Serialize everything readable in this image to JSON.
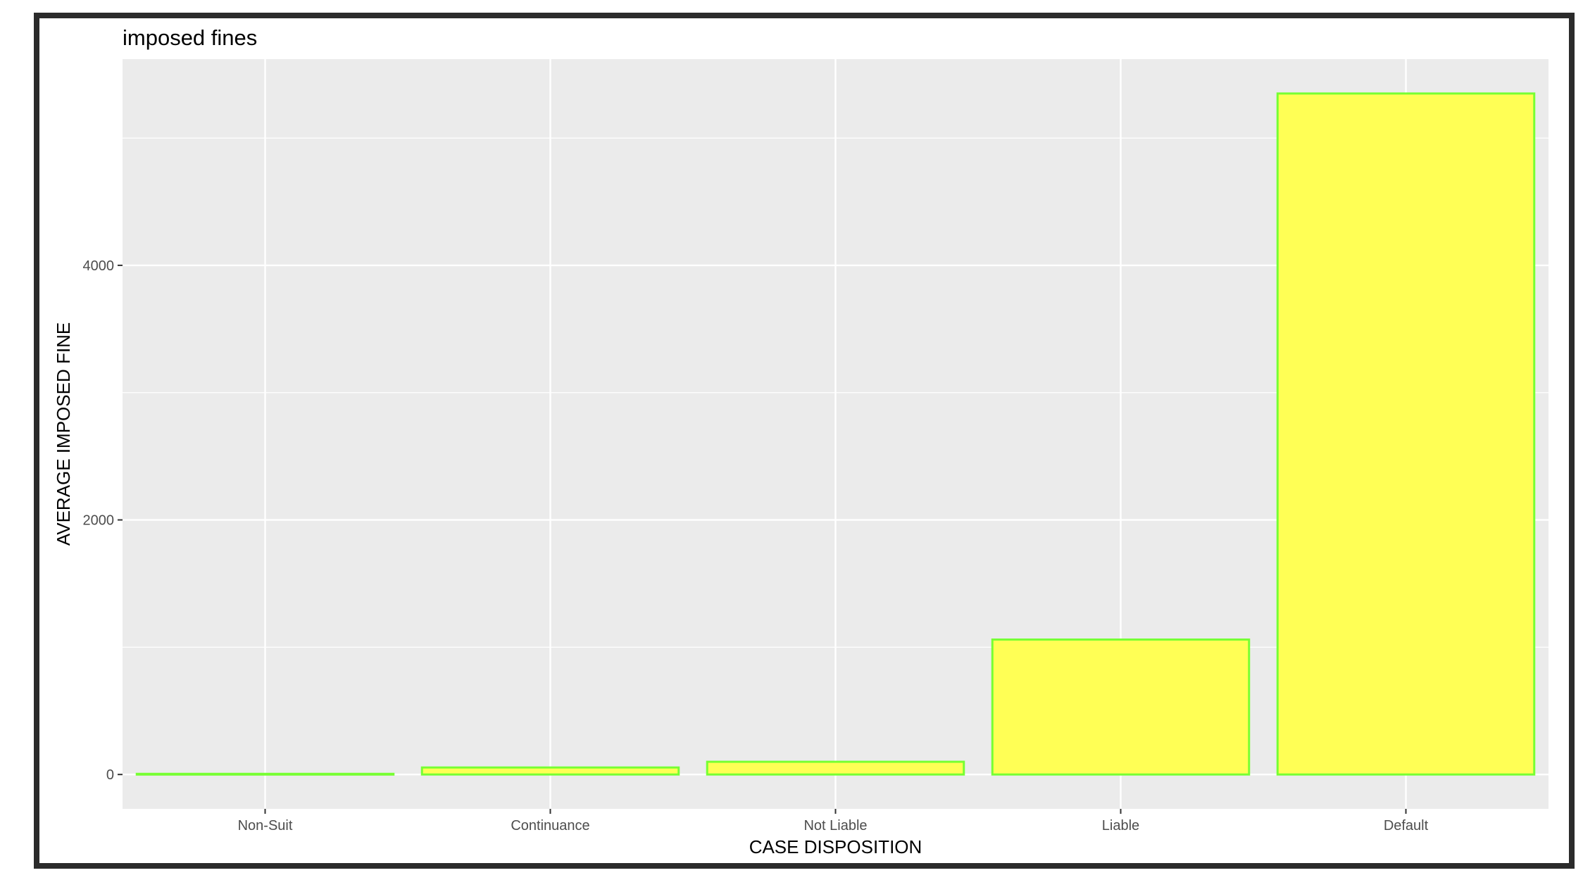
{
  "chart_data": {
    "type": "bar",
    "title": "imposed fines",
    "xlabel": "CASE DISPOSITION",
    "ylabel": "AVERAGE IMPOSED FINE",
    "categories": [
      "Non-Suit",
      "Continuance",
      "Not Liable",
      "Liable",
      "Default"
    ],
    "values": [
      5,
      55,
      100,
      1060,
      5350
    ],
    "ylim": [
      -270,
      5620
    ],
    "yticks": [
      0,
      2000,
      4000
    ],
    "grid": true,
    "colors": {
      "bar_fill": "#ffff55",
      "bar_outline": "#77ff33",
      "panel_background": "#ebebeb",
      "gridline": "#ffffff"
    }
  }
}
